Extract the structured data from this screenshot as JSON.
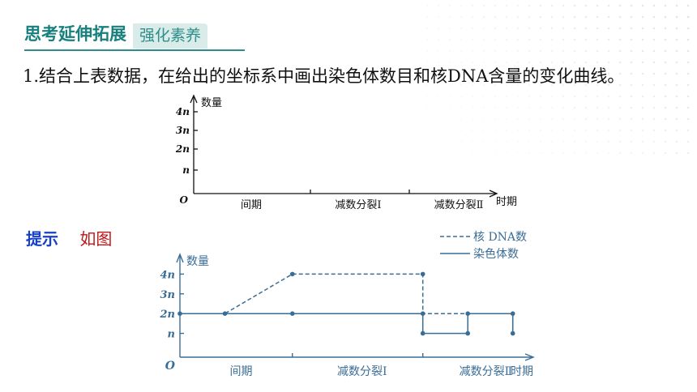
{
  "header": {
    "title": "思考延伸拓展",
    "subtitle": "强化素养"
  },
  "question": {
    "text": "1.结合上表数据，在给出的坐标系中画出染色体数目和核DNA含量的变化曲线。"
  },
  "hint": {
    "label": "提示",
    "text": "如图"
  },
  "colors": {
    "accent": "#2f8e8b",
    "chart_blue": "#3a6d96",
    "hint_blue": "#1640c8",
    "hint_red": "#c0161a"
  },
  "empty_chart": {
    "ylabel": "数量",
    "origin": "O",
    "xlabel": "时期",
    "y_ticks": [
      "n",
      "2n",
      "3n",
      "4n"
    ],
    "phases": [
      "间期",
      "减数分裂Ⅰ",
      "减数分裂Ⅱ"
    ]
  },
  "chart_data": {
    "type": "line",
    "ylabel": "数量",
    "xlabel": "时期",
    "origin": "O",
    "y_ticks": [
      "n",
      "2n",
      "3n",
      "4n"
    ],
    "phases": [
      "间期",
      "减数分裂Ⅰ",
      "减数分裂Ⅱ"
    ],
    "series": [
      {
        "name": "核DNA数",
        "style": "dashed",
        "points": [
          [
            0,
            2
          ],
          [
            1,
            2
          ],
          [
            2.5,
            4
          ],
          [
            5.4,
            4
          ],
          [
            5.4,
            2
          ],
          [
            6.4,
            2
          ],
          [
            7.4,
            2
          ],
          [
            7.4,
            1
          ]
        ]
      },
      {
        "name": "染色体数",
        "style": "solid",
        "points": [
          [
            0,
            2
          ],
          [
            1,
            2
          ],
          [
            2.5,
            2
          ],
          [
            5.4,
            2
          ],
          [
            5.4,
            1
          ],
          [
            6.4,
            1
          ],
          [
            6.4,
            2
          ],
          [
            7.4,
            2
          ],
          [
            7.4,
            1
          ]
        ]
      }
    ],
    "legend": [
      {
        "label": "核 DNA数",
        "style": "dashed"
      },
      {
        "label": "染色体数",
        "style": "solid"
      }
    ]
  }
}
